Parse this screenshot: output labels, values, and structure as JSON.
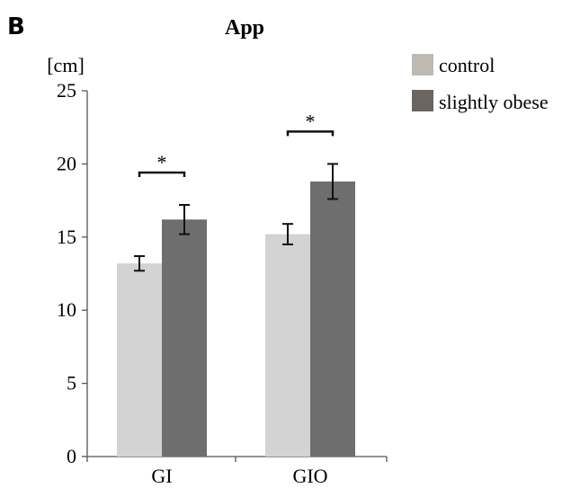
{
  "panel_label": "B",
  "chart_data": {
    "type": "bar",
    "title": "App",
    "ylabel": "[cm]",
    "xlabel": "",
    "categories": [
      "GI",
      "GIO"
    ],
    "series": [
      {
        "name": "control",
        "values": [
          13.2,
          15.2
        ],
        "errors": [
          0.5,
          0.7
        ],
        "color": "#d3d3d3"
      },
      {
        "name": "slightly obese",
        "values": [
          16.2,
          18.8
        ],
        "errors": [
          1.0,
          1.2
        ],
        "color": "#6e6e6e"
      }
    ],
    "ylim": [
      0,
      25
    ],
    "yticks": [
      "0",
      "5",
      "10",
      "15",
      "20",
      "25"
    ],
    "yticks_values": [
      0,
      5,
      10,
      15,
      20,
      25
    ],
    "significance": [
      "*",
      "*"
    ],
    "legend_position": "top-right",
    "legend_colors": [
      "#bfb9b4",
      "#6b6561"
    ],
    "grid": false
  }
}
